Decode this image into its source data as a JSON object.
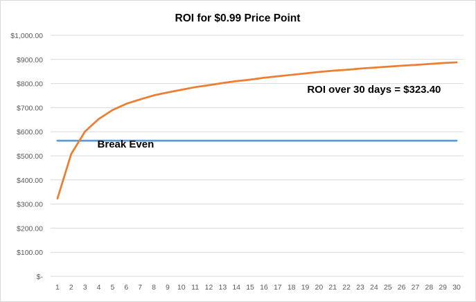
{
  "chart_data": {
    "type": "line",
    "title": "ROI for $0.99 Price Point",
    "xlabel": "",
    "ylabel": "",
    "x": [
      1,
      2,
      3,
      4,
      5,
      6,
      7,
      8,
      9,
      10,
      11,
      12,
      13,
      14,
      15,
      16,
      17,
      18,
      19,
      20,
      21,
      22,
      23,
      24,
      25,
      26,
      27,
      28,
      29,
      30
    ],
    "x_tick_labels": [
      "1",
      "2",
      "3",
      "4",
      "5",
      "6",
      "7",
      "8",
      "9",
      "10",
      "11",
      "12",
      "13",
      "14",
      "15",
      "16",
      "17",
      "18",
      "19",
      "20",
      "21",
      "22",
      "23",
      "24",
      "25",
      "26",
      "27",
      "28",
      "29",
      "30"
    ],
    "ylim": [
      0,
      1000
    ],
    "y_ticks": [
      0,
      100,
      200,
      300,
      400,
      500,
      600,
      700,
      800,
      900,
      1000
    ],
    "y_tick_labels": [
      "$-",
      "$100.00",
      "$200.00",
      "$300.00",
      "$400.00",
      "$500.00",
      "$600.00",
      "$700.00",
      "$800.00",
      "$900.00",
      "$1,000.00"
    ],
    "grid": true,
    "legend": "none",
    "series": [
      {
        "color": "#ed7d31",
        "values": [
          323,
          508,
          601,
          653,
          690,
          716,
          734,
          751,
          763,
          774,
          785,
          793,
          802,
          810,
          816,
          824,
          830,
          836,
          842,
          848,
          853,
          857,
          862,
          866,
          870,
          874,
          877,
          881,
          885,
          888
        ]
      },
      {
        "color": "#5b9bd5",
        "values": [
          563,
          563,
          563,
          563,
          563,
          563,
          563,
          563,
          563,
          563,
          563,
          563,
          563,
          563,
          563,
          563,
          563,
          563,
          563,
          563,
          563,
          563,
          563,
          563,
          563,
          563,
          563,
          563,
          563,
          563
        ]
      }
    ],
    "annotations": [
      {
        "text": "Break Even",
        "x": 3.9,
        "y": 535
      },
      {
        "text": "ROI over 30 days = $323.40",
        "x": 24.0,
        "y": 762
      }
    ]
  }
}
